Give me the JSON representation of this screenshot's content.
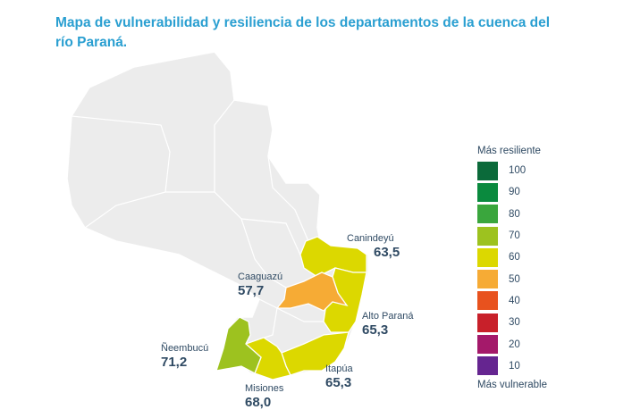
{
  "title": "Mapa de vulnerabilidad y resiliencia de los departamentos de la cuenca del río Paraná.",
  "base_color": "#ececec",
  "departments": [
    {
      "name": "Canindeyú",
      "value": "63,5",
      "color": "#dcd800"
    },
    {
      "name": "Caaguazú",
      "value": "57,7",
      "color": "#f6ab35"
    },
    {
      "name": "Alto Paraná",
      "value": "65,3",
      "color": "#dcd800"
    },
    {
      "name": "Ñeembucú",
      "value": "71,2",
      "color": "#9dc21f"
    },
    {
      "name": "Misiones",
      "value": "68,0",
      "color": "#dcd800"
    },
    {
      "name": "Itapúa",
      "value": "65,3",
      "color": "#dcd800"
    }
  ],
  "legend": {
    "top_label": "Más resiliente",
    "bottom_label": "Más vulnerable",
    "items": [
      {
        "value": "100",
        "color": "#0b6a3a"
      },
      {
        "value": "90",
        "color": "#0a8a3e"
      },
      {
        "value": "80",
        "color": "#3aa63d"
      },
      {
        "value": "70",
        "color": "#9dc21f"
      },
      {
        "value": "60",
        "color": "#dcd800"
      },
      {
        "value": "50",
        "color": "#f6ab35"
      },
      {
        "value": "40",
        "color": "#e8521e"
      },
      {
        "value": "30",
        "color": "#c8202a"
      },
      {
        "value": "20",
        "color": "#a4196a"
      },
      {
        "value": "10",
        "color": "#652590"
      }
    ]
  }
}
